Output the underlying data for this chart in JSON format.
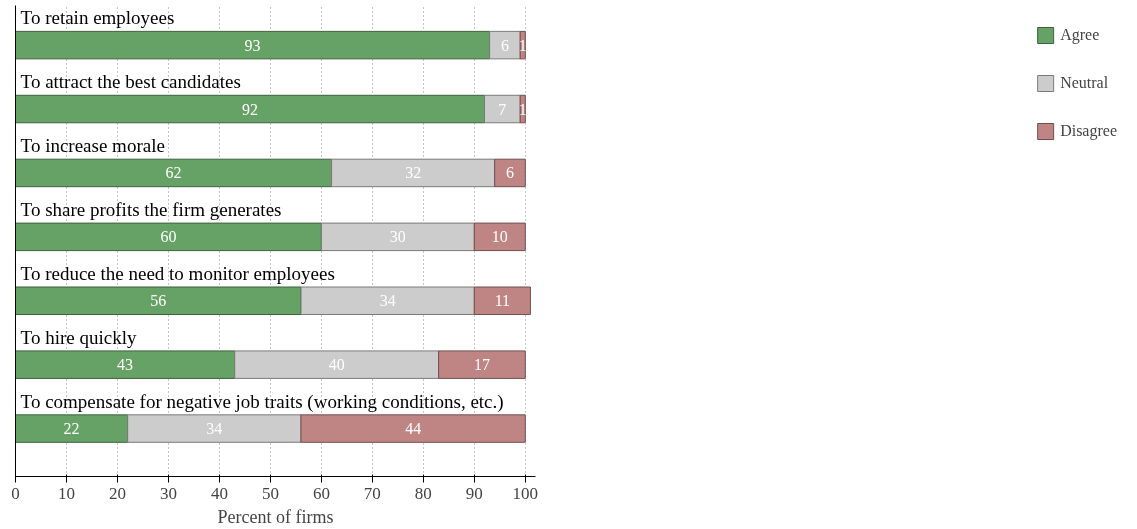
{
  "chart_data": {
    "type": "bar",
    "orientation": "horizontal",
    "stacked": true,
    "categories": [
      "To retain employees",
      "To attract the best candidates",
      "To increase morale",
      "To share profits the firm generates",
      "To reduce the need to monitor employees",
      "To hire quickly",
      "To compensate for negative job traits (working conditions, etc.)"
    ],
    "series": [
      {
        "name": "Agree",
        "color": "#66a266",
        "values": [
          93,
          92,
          62,
          60,
          56,
          43,
          22
        ]
      },
      {
        "name": "Neutral",
        "color": "#cccccc",
        "values": [
          6,
          7,
          32,
          30,
          34,
          40,
          34
        ]
      },
      {
        "name": "Disagree",
        "color": "#bf8585",
        "values": [
          1,
          1,
          6,
          10,
          11,
          17,
          44
        ]
      }
    ],
    "xlabel": "Percent of firms",
    "xlim": [
      0,
      102
    ],
    "xticks": [
      0,
      10,
      20,
      30,
      40,
      50,
      60,
      70,
      80,
      90,
      100
    ],
    "grid": "x",
    "legend": "right",
    "data_labels": true
  }
}
